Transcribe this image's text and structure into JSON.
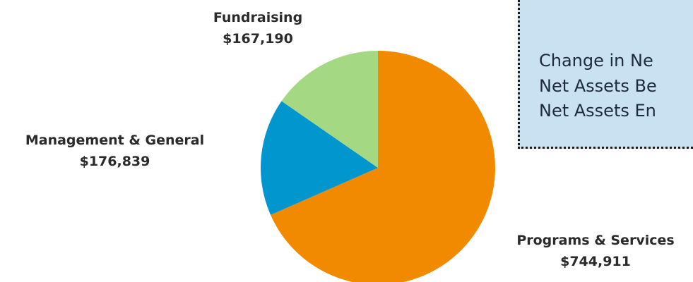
{
  "chart_data": {
    "type": "pie",
    "slices": [
      {
        "label": "Programs & Services",
        "value_text": "$744,911",
        "value": 744911,
        "color": "#f28a00"
      },
      {
        "label": "Management & General",
        "value_text": "$176,839",
        "value": 176839,
        "color": "#0296cf"
      },
      {
        "label": "Fundraising",
        "value_text": "$167,190",
        "value": 167190,
        "color": "#a5d883"
      }
    ]
  },
  "net_assets_box": {
    "lines": [
      "Change in Ne",
      "Net Assets Be",
      "Net Assets En"
    ]
  }
}
